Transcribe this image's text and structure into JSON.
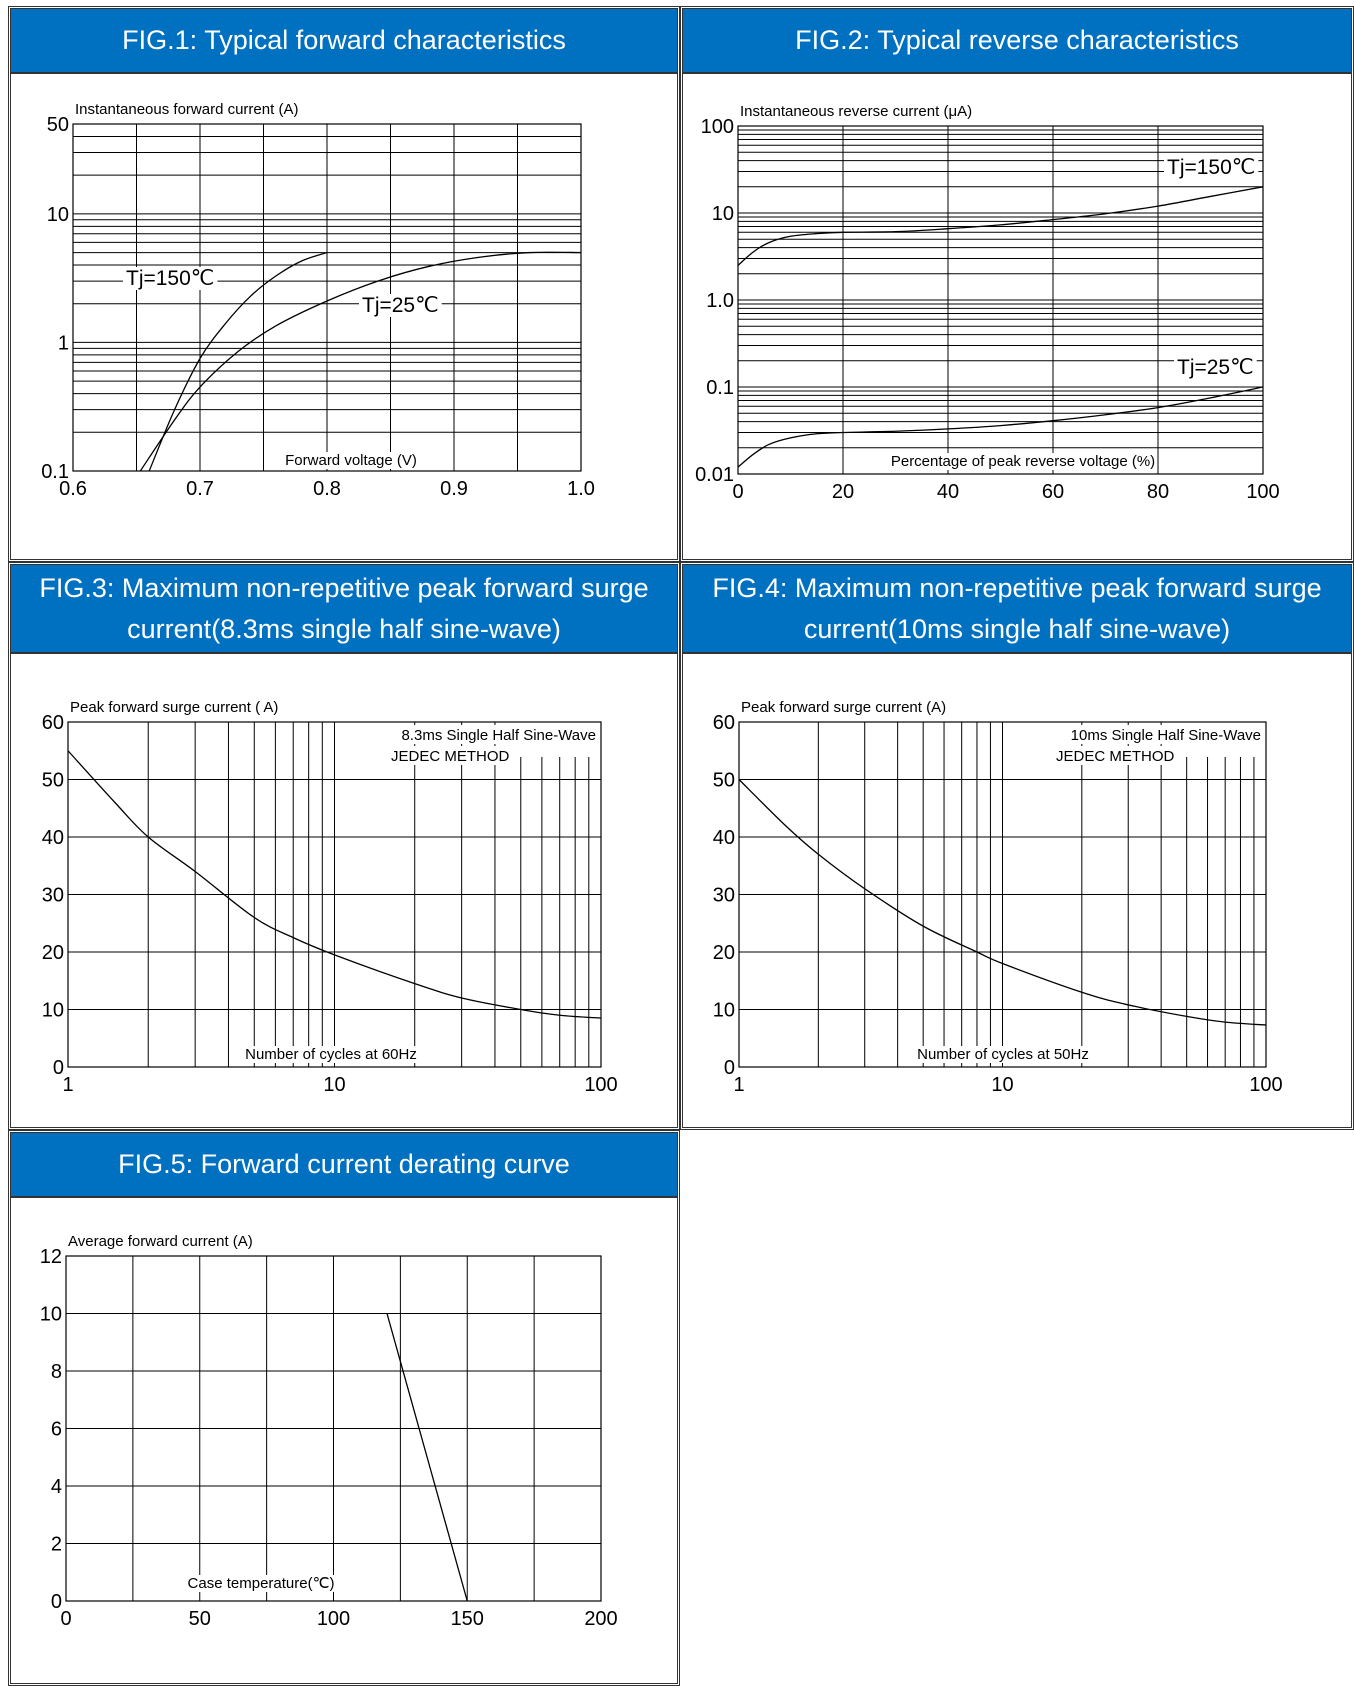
{
  "header_color": "#0070c0",
  "chart_data": [
    {
      "id": "fig1",
      "type": "line",
      "title": "FIG.1: Typical forward characteristics",
      "xlabel": "Forward voltage (V)",
      "ylabel": "Instantaneous forward current (A)",
      "xlim": [
        0.6,
        1.0
      ],
      "ylim": [
        0.1,
        50
      ],
      "yscale": "log",
      "x_ticks": [
        "0.6",
        "0.7",
        "0.8",
        "0.9",
        "1.0"
      ],
      "y_ticks": [
        {
          "v": 0.1,
          "label": "0.1"
        },
        {
          "v": 1,
          "label": "1"
        },
        {
          "v": 10,
          "label": "10"
        },
        {
          "v": 50,
          "label": "50"
        }
      ],
      "grid": true,
      "series": [
        {
          "name": "Tj=150℃",
          "points": [
            [
              0.66,
              0.1
            ],
            [
              0.68,
              0.3
            ],
            [
              0.7,
              0.75
            ],
            [
              0.72,
              1.4
            ],
            [
              0.74,
              2.3
            ],
            [
              0.76,
              3.3
            ],
            [
              0.78,
              4.3
            ],
            [
              0.8,
              5.0
            ]
          ]
        },
        {
          "name": "Tj=25℃",
          "points": [
            [
              0.653,
              0.1
            ],
            [
              0.68,
              0.25
            ],
            [
              0.7,
              0.45
            ],
            [
              0.73,
              0.85
            ],
            [
              0.76,
              1.35
            ],
            [
              0.8,
              2.1
            ],
            [
              0.84,
              3.0
            ],
            [
              0.88,
              3.9
            ],
            [
              0.92,
              4.6
            ],
            [
              0.96,
              5.0
            ],
            [
              1.0,
              5.0
            ]
          ]
        }
      ]
    },
    {
      "id": "fig2",
      "type": "line",
      "title": "FIG.2: Typical reverse characteristics",
      "xlabel": "Percentage of peak reverse voltage (%)",
      "ylabel": "Instantaneous reverse current (μA)",
      "xlim": [
        0,
        100
      ],
      "ylim": [
        0.01,
        100
      ],
      "yscale": "log",
      "x_ticks": [
        "0",
        "20",
        "40",
        "60",
        "80",
        "100"
      ],
      "y_ticks": [
        {
          "v": 0.01,
          "label": "0.01"
        },
        {
          "v": 0.1,
          "label": "0.1"
        },
        {
          "v": 1,
          "label": "1.0"
        },
        {
          "v": 10,
          "label": "10"
        },
        {
          "v": 100,
          "label": "100"
        }
      ],
      "grid": true,
      "series": [
        {
          "name": "Tj=150℃",
          "points": [
            [
              0,
              2.5
            ],
            [
              3,
              3.6
            ],
            [
              6,
              4.6
            ],
            [
              10,
              5.4
            ],
            [
              15,
              5.8
            ],
            [
              20,
              6.0
            ],
            [
              30,
              6.1
            ],
            [
              40,
              6.6
            ],
            [
              50,
              7.3
            ],
            [
              60,
              8.4
            ],
            [
              70,
              9.8
            ],
            [
              80,
              12.0
            ],
            [
              90,
              15.5
            ],
            [
              100,
              20.0
            ]
          ]
        },
        {
          "name": "Tj=25℃",
          "points": [
            [
              0,
              0.012
            ],
            [
              3,
              0.017
            ],
            [
              6,
              0.022
            ],
            [
              10,
              0.026
            ],
            [
              15,
              0.029
            ],
            [
              20,
              0.03
            ],
            [
              30,
              0.031
            ],
            [
              40,
              0.033
            ],
            [
              50,
              0.036
            ],
            [
              60,
              0.041
            ],
            [
              70,
              0.048
            ],
            [
              80,
              0.058
            ],
            [
              90,
              0.075
            ],
            [
              100,
              0.1
            ]
          ]
        }
      ]
    },
    {
      "id": "fig3",
      "type": "line",
      "title": "FIG.3: Maximum non-repetitive peak forward surge current(8.3ms single half sine-wave)",
      "xlabel": "Number of cycles at 60Hz",
      "ylabel": "Peak forward surge current ( A)",
      "annotation": [
        "8.3ms Single Half Sine-Wave",
        "JEDEC METHOD"
      ],
      "xlim": [
        1,
        100
      ],
      "xscale": "log",
      "ylim": [
        0,
        60
      ],
      "x_ticks": [
        {
          "v": 1,
          "label": "1"
        },
        {
          "v": 10,
          "label": "10"
        },
        {
          "v": 100,
          "label": "100"
        }
      ],
      "y_ticks": [
        "0",
        "10",
        "20",
        "30",
        "40",
        "50",
        "60"
      ],
      "grid": true,
      "series": [
        {
          "name": "",
          "points": [
            [
              1,
              55
            ],
            [
              1.5,
              46
            ],
            [
              2,
              40
            ],
            [
              3,
              34
            ],
            [
              5,
              26
            ],
            [
              7,
              22.5
            ],
            [
              10,
              19.5
            ],
            [
              20,
              14.5
            ],
            [
              30,
              12
            ],
            [
              50,
              10
            ],
            [
              70,
              9
            ],
            [
              100,
              8.5
            ]
          ]
        }
      ]
    },
    {
      "id": "fig4",
      "type": "line",
      "title": "FIG.4: Maximum non-repetitive peak forward surge current(10ms single half sine-wave)",
      "xlabel": "Number of cycles at 50Hz",
      "ylabel": "Peak forward surge current (A)",
      "annotation": [
        "10ms Single Half Sine-Wave",
        "JEDEC METHOD"
      ],
      "xlim": [
        1,
        100
      ],
      "xscale": "log",
      "ylim": [
        0,
        60
      ],
      "x_ticks": [
        {
          "v": 1,
          "label": "1"
        },
        {
          "v": 10,
          "label": "10"
        },
        {
          "v": 100,
          "label": "100"
        }
      ],
      "y_ticks": [
        "0",
        "10",
        "20",
        "30",
        "40",
        "50",
        "60"
      ],
      "grid": true,
      "series": [
        {
          "name": "",
          "points": [
            [
              1,
              50
            ],
            [
              1.5,
              42
            ],
            [
              2,
              37
            ],
            [
              3,
              31
            ],
            [
              5,
              24.5
            ],
            [
              8,
              20
            ],
            [
              10,
              18
            ],
            [
              20,
              13
            ],
            [
              30,
              10.8
            ],
            [
              50,
              8.8
            ],
            [
              70,
              7.8
            ],
            [
              100,
              7.3
            ]
          ]
        }
      ]
    },
    {
      "id": "fig5",
      "type": "line",
      "title": "FIG.5: Forward current derating curve",
      "xlabel": "Case temperature(℃)",
      "ylabel": "Average forward current (A)",
      "xlim": [
        0,
        200
      ],
      "ylim": [
        0,
        12
      ],
      "x_ticks": [
        "0",
        "50",
        "100",
        "150",
        "200"
      ],
      "y_ticks": [
        "0",
        "2",
        "4",
        "6",
        "8",
        "10",
        "12"
      ],
      "grid": true,
      "series": [
        {
          "name": "",
          "points": [
            [
              120,
              10
            ],
            [
              150,
              0
            ]
          ]
        }
      ]
    }
  ]
}
